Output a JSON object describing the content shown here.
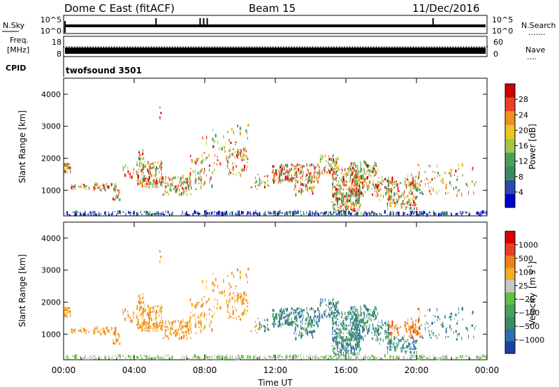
{
  "header": {
    "station": "Dome C East (fitACF)",
    "beam": "Beam 15",
    "date": "11/Dec/2016"
  },
  "strips": {
    "nsky": {
      "label": "N.Sky",
      "ticks_left": [
        "10^5",
        "10^0"
      ],
      "ticks_right": [
        "10^5",
        "10^0"
      ],
      "right_label": "N.Search",
      "right_dots": "......."
    },
    "freq": {
      "label_top": "Freq.",
      "label_bottom": "[MHz]",
      "ticks_left": [
        "18",
        "8"
      ],
      "ticks_right": [
        "60",
        "0"
      ],
      "right_label": "Nave",
      "right_dots": "...."
    },
    "cpid": {
      "label": "CPID",
      "value": "twofsound 3501"
    }
  },
  "chart_data": [
    {
      "type": "heatmap",
      "name": "power-panel",
      "ylabel": "Slant Range [km]",
      "xlabel": "",
      "ylim": [
        200,
        4500
      ],
      "yticks": [
        "1000",
        "2000",
        "3000",
        "4000"
      ],
      "xlim": [
        0,
        24
      ],
      "colorbar": {
        "label": "Power [dB]",
        "ticks": [
          "28",
          "24",
          "20",
          "16",
          "12",
          "8",
          "4"
        ],
        "colors": [
          "#0000cc",
          "#2a4ca8",
          "#3b8a5e",
          "#4aa058",
          "#a0c840",
          "#e8c820",
          "#f09020",
          "#e84020",
          "#cc0000"
        ]
      }
    },
    {
      "type": "heatmap",
      "name": "velocity-panel",
      "ylabel": "Slant Range [km]",
      "xlabel": "Time UT",
      "ylim": [
        200,
        4500
      ],
      "yticks": [
        "1000",
        "2000",
        "3000",
        "4000"
      ],
      "xlim": [
        0,
        24
      ],
      "xticks": [
        "00:00",
        "04:00",
        "08:00",
        "12:00",
        "16:00",
        "20:00",
        "00:00"
      ],
      "colorbar": {
        "label_main": "Velocity",
        "label_units": "[m s",
        "label_exp": "-1",
        "label_close": "]",
        "ticks": [
          "1000",
          "500",
          "100",
          "25",
          "−25",
          "−100",
          "−500",
          "−1000"
        ],
        "colors": [
          "#1a3fa8",
          "#2f6fb0",
          "#3d8a6a",
          "#4aa060",
          "#60c040",
          "#c8c8c8",
          "#f0b020",
          "#f08020",
          "#e84020",
          "#dd0000"
        ]
      }
    }
  ]
}
